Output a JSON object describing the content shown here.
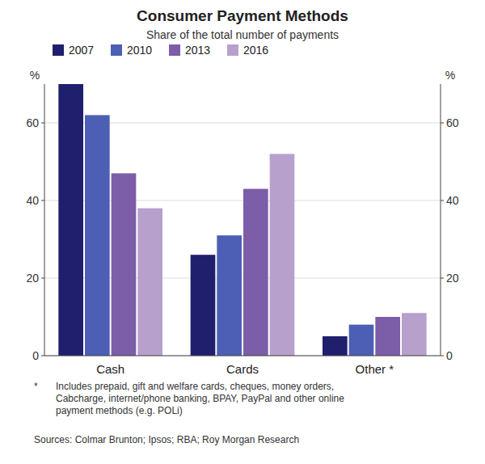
{
  "chart_data": {
    "type": "bar",
    "title": "Consumer Payment Methods",
    "subtitle": "Share of the total number of payments",
    "categories": [
      "Cash",
      "Cards",
      "Other *"
    ],
    "series": [
      {
        "name": "2007",
        "color": "#1f1f6e",
        "values": [
          70,
          26,
          5
        ]
      },
      {
        "name": "2010",
        "color": "#4c5fb5",
        "values": [
          62,
          31,
          8
        ]
      },
      {
        "name": "2013",
        "color": "#7b5ea7",
        "values": [
          47,
          43,
          10
        ]
      },
      {
        "name": "2016",
        "color": "#b8a0cc",
        "values": [
          38,
          52,
          11
        ]
      }
    ],
    "ylabel": "%",
    "y2label": "%",
    "ylim": [
      0,
      70
    ],
    "yticks": [
      0,
      20,
      40,
      60
    ],
    "y2lim": [
      0,
      70
    ],
    "y2ticks": [
      0,
      20,
      40,
      60
    ],
    "grid": true,
    "legend": "upper left",
    "annotations": [
      "*",
      "Includes prepaid, gift and welfare cards, cheques, money orders,\nCabcharge, internet/phone banking, BPAY, PayPal and other online\npayment methods (e.g. POLi)",
      "Sources: Colmar Brunton; Ipsos; RBA; Roy Morgan Research"
    ]
  }
}
